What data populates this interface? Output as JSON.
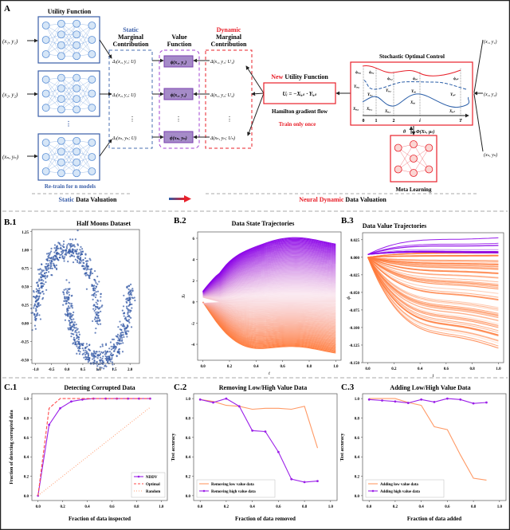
{
  "panelA": {
    "label": "A",
    "utility_title": "Utility Function",
    "inputs": [
      "(x₁, y₁)",
      "(x₂, y₂)",
      "(xₙ, yₙ)"
    ],
    "retrain": "Re-train for n models",
    "static_mc": {
      "line1": "Static",
      "line2": "Marginal",
      "line3": "Contribution",
      "rows": [
        "Δⱼ(x₁, y₁; U)",
        "Δⱼ(x₂, y₂; U)",
        "Δⱼ(xₙ, yₙ; U)"
      ]
    },
    "value_fn": {
      "line1": "Value",
      "line2": "Function",
      "rows": [
        "ϕ(x₁, y₁)",
        "ϕ(x₂, y₂)",
        "ϕ(xₙ, yₙ)"
      ]
    },
    "dynamic_mc": {
      "line1": "Dynamic",
      "line2": "Marginal",
      "line3": "Contribution",
      "rows": [
        "Δ(x₁, y₁; U₁)",
        "Δ(x₂, y₂; U₂)",
        "Δ(xₙ, yₙ; Uₙ)"
      ]
    },
    "new_utility": {
      "new": "New",
      "rest": "Utility Function",
      "formula": "Uᵢ = −Xᵢ,ₜ · Yᵢ,ₜ"
    },
    "hamilton": "Hamilton gradient flow",
    "train_once": "Train only once",
    "soc_title": "Stochastic Optimal Control",
    "soc_labels": {
      "phi": [
        "ϕᵢ,₀",
        "ϕᵢ,₁",
        "ϕᵢ,₂",
        "ϕᵢ,ᵢ",
        "ϕᵢ,ₜ"
      ],
      "Y": [
        "Yᵢ,₀",
        "Yᵢ,₁",
        "Yᵢ,₂",
        "Yᵢ,ᵢ",
        "Yᵢ,ₜ"
      ],
      "X": [
        "Xᵢ,₀",
        "Xᵢ,₁",
        "Xᵢ,₂",
        "Xᵢ,ᵢ",
        "Xᵢ,ₜ"
      ],
      "ticks": [
        "0",
        "1",
        "2",
        "i",
        "T"
      ]
    },
    "theta": "θ",
    "Phi": "Φ(Xₜ, μₜ)",
    "meta_learning": "Meta Learning",
    "right_inputs": [
      "(x₁, y₁)",
      "(x₂, y₂)",
      "(xₙ, yₙ)"
    ],
    "static_dv": {
      "colored": "Static",
      "rest": " Data Valuation"
    },
    "neural_dv": {
      "colored": "Neural Dynamic",
      "rest": " Data Valuation"
    },
    "colors": {
      "blue": "#3a5ea8",
      "red": "#e8202a",
      "purple": "#9a4fd0",
      "orange": "#ff8a50"
    }
  },
  "chart_data": [
    {
      "id": "B.1",
      "type": "scatter",
      "title": "Half Moons Dataset",
      "xlabel": "",
      "ylabel": "",
      "xlim": [
        -1.12,
        2.3
      ],
      "ylim": [
        -0.55,
        1.28
      ],
      "xticks": [
        -1.0,
        -0.5,
        0.0,
        0.5,
        1.0,
        1.5,
        2.0
      ],
      "xticklabels": [
        "-1.0",
        "-0.5",
        "0.0",
        "0.5",
        "1.0",
        "1.5",
        "2.0"
      ],
      "yticks": [
        -0.5,
        -0.25,
        0,
        0.25,
        0.5,
        0.75,
        1.0,
        1.25
      ],
      "yticklabels": [
        "-0.50",
        "-0.25",
        "0.00",
        "0.25",
        "0.50",
        "0.75",
        "1.00",
        "1.25"
      ],
      "dataset": "two interleaving half moons",
      "n_points": 1000,
      "noise": 0.07,
      "color": "#3a5ea8"
    },
    {
      "id": "B.2",
      "type": "line",
      "title": "Data State Trajectories",
      "xlabel": "t",
      "ylabel": "Xₜ",
      "xlim": [
        -0.04,
        1.04
      ],
      "ylim": [
        -5.5,
        6.6
      ],
      "xticks": [
        0,
        0.2,
        0.4,
        0.6,
        0.8,
        1.0
      ],
      "xticklabels": [
        "0.0",
        "0.2",
        "0.4",
        "0.6",
        "0.8",
        "1.0"
      ],
      "yticks": [
        -4,
        -2,
        0,
        2,
        4,
        6
      ],
      "yticklabels": [
        "-4",
        "-2",
        "0",
        "2",
        "4",
        "6"
      ],
      "n_trajectories": 130,
      "final_range": [
        -4.5,
        5.9
      ],
      "colors": [
        "#ff7a3a",
        "#f2c4d8",
        "#8a00e8"
      ]
    },
    {
      "id": "B.3",
      "type": "line",
      "title": "Data Value Trajectories",
      "xlabel": "t",
      "ylabel": "ϕₜ",
      "xlim": [
        -0.04,
        1.04
      ],
      "ylim": [
        -0.15,
        0.035
      ],
      "xticks": [
        0,
        0.2,
        0.4,
        0.6,
        0.8,
        1.0
      ],
      "xticklabels": [
        "0.0",
        "0.2",
        "0.4",
        "0.6",
        "0.8",
        "1.0"
      ],
      "yticks": [
        -0.15,
        -0.125,
        -0.1,
        -0.075,
        -0.05,
        -0.025,
        0,
        0.025
      ],
      "yticklabels": [
        "-0.150",
        "-0.125",
        "-0.100",
        "-0.075",
        "-0.050",
        "-0.025",
        "0.000",
        "0.025"
      ],
      "n_trajectories": 95,
      "final_range": [
        -0.14,
        0.03
      ],
      "colors": [
        "#ff7a3a",
        "#8a00e8"
      ]
    },
    {
      "id": "C.1",
      "type": "line",
      "title": "Detecting Corrupted Data",
      "xlabel": "Fraction of data inspected",
      "ylabel": "Fraction of detecting corrupted data",
      "xlim": [
        -0.05,
        1.05
      ],
      "ylim": [
        -0.05,
        1.05
      ],
      "xticks": [
        0,
        0.2,
        0.4,
        0.6,
        0.8,
        1.0
      ],
      "xticklabels": [
        "0.0",
        "0.2",
        "0.4",
        "0.6",
        "0.8",
        "1.0"
      ],
      "yticks": [
        0,
        0.2,
        0.4,
        0.6,
        0.8,
        1.0
      ],
      "yticklabels": [
        "0.0",
        "0.2",
        "0.4",
        "0.6",
        "0.8",
        "1.0"
      ],
      "legend": "bottom-right",
      "series": [
        {
          "name": "NDDV",
          "style": "solid-marker",
          "color": "#9b1fe8",
          "x": [
            0,
            0.09,
            0.18,
            0.27,
            0.36,
            0.45,
            0.55,
            0.64,
            0.73,
            0.82,
            0.91
          ],
          "y": [
            0,
            0.73,
            0.9,
            0.97,
            0.99,
            1,
            1,
            1,
            1,
            1,
            1
          ]
        },
        {
          "name": "Optimal",
          "style": "dashed",
          "color": "#ff4b4b",
          "x": [
            0,
            0.09,
            0.18,
            0.27,
            0.36,
            0.45,
            0.55,
            0.64,
            0.73,
            0.82,
            0.91
          ],
          "y": [
            0,
            0.9,
            1,
            1,
            1,
            1,
            1,
            1,
            1,
            1,
            1
          ]
        },
        {
          "name": "Random",
          "style": "dotted",
          "color": "#ffa27a",
          "x": [
            0,
            0.91
          ],
          "y": [
            0,
            0.91
          ]
        }
      ]
    },
    {
      "id": "C.2",
      "type": "line",
      "title": "Removing Low/High Value Data",
      "xlabel": "Fraction of data removed",
      "ylabel": "Test accuracy",
      "xlim": [
        -0.05,
        1.05
      ],
      "ylim": [
        -0.05,
        1.05
      ],
      "xticks": [
        0,
        0.2,
        0.4,
        0.6,
        0.8,
        1.0
      ],
      "xticklabels": [
        "0.0",
        "0.2",
        "0.4",
        "0.6",
        "0.8",
        "1.0"
      ],
      "yticks": [
        0,
        0.2,
        0.4,
        0.6,
        0.8,
        1.0
      ],
      "yticklabels": [
        "0.0",
        "0.2",
        "0.4",
        "0.6",
        "0.8",
        "1.0"
      ],
      "legend": "bottom-left",
      "series": [
        {
          "name": "Removing low value data",
          "style": "solid",
          "color": "#ff9a66",
          "x": [
            0,
            0.1,
            0.2,
            0.3,
            0.4,
            0.5,
            0.6,
            0.7,
            0.8,
            0.9
          ],
          "y": [
            0.99,
            0.97,
            0.93,
            0.92,
            0.89,
            0.9,
            0.9,
            0.89,
            0.92,
            0.49
          ]
        },
        {
          "name": "Removing high value data",
          "style": "solid-marker",
          "color": "#9b1fe8",
          "x": [
            0,
            0.1,
            0.2,
            0.3,
            0.4,
            0.5,
            0.6,
            0.7,
            0.8,
            0.9
          ],
          "y": [
            0.99,
            0.96,
            1.0,
            0.92,
            0.67,
            0.66,
            0.45,
            0.17,
            0.14,
            0.15
          ]
        }
      ]
    },
    {
      "id": "C.3",
      "type": "line",
      "title": "Adding Low/High Value Data",
      "xlabel": "Fraction of data added",
      "ylabel": "Test accuracy",
      "xlim": [
        -0.05,
        1.05
      ],
      "ylim": [
        -0.05,
        1.05
      ],
      "xticks": [
        0,
        0.2,
        0.4,
        0.6,
        0.8,
        1.0
      ],
      "xticklabels": [
        "0.0",
        "0.2",
        "0.4",
        "0.6",
        "0.8",
        "1.0"
      ],
      "yticks": [
        0,
        0.2,
        0.4,
        0.6,
        0.8,
        1.0
      ],
      "yticklabels": [
        "0.0",
        "0.2",
        "0.4",
        "0.6",
        "0.8",
        "1.0"
      ],
      "legend": "bottom-left",
      "series": [
        {
          "name": "Adding low value data",
          "style": "solid",
          "color": "#ff9a66",
          "x": [
            0,
            0.1,
            0.2,
            0.3,
            0.4,
            0.5,
            0.6,
            0.7,
            0.8,
            0.9
          ],
          "y": [
            1.0,
            1.0,
            1.0,
            0.96,
            0.93,
            0.71,
            0.68,
            0.42,
            0.18,
            0.16
          ]
        },
        {
          "name": "Adding high value data",
          "style": "solid-marker",
          "color": "#9b1fe8",
          "x": [
            0,
            0.1,
            0.2,
            0.3,
            0.4,
            0.5,
            0.6,
            0.7,
            0.8,
            0.9
          ],
          "y": [
            0.99,
            0.98,
            0.97,
            0.955,
            0.99,
            0.965,
            1.0,
            0.99,
            0.95,
            0.96
          ]
        }
      ]
    }
  ]
}
